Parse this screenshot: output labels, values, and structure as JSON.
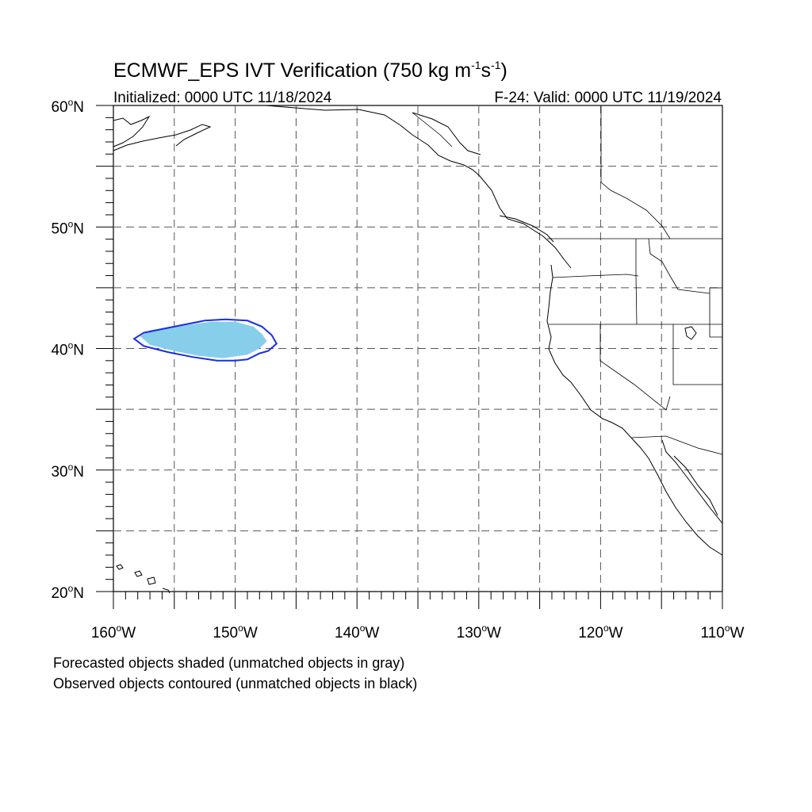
{
  "title": {
    "prefix": "ECMWF_EPS IVT Verification (750 kg m",
    "exp1": "-1",
    "mid": "s",
    "exp2": "-1",
    "suffix": ")"
  },
  "initialized": "Initialized: 0000 UTC 11/18/2024",
  "valid": "F-24: Valid: 0000 UTC 11/19/2024",
  "map": {
    "lon_range": [
      -160,
      -110
    ],
    "lat_range": [
      20,
      60
    ],
    "grid": "dashed every 5 degrees",
    "lat_labels": [
      {
        "lat": 60,
        "text": "60",
        "hemi": "N"
      },
      {
        "lat": 50,
        "text": "50",
        "hemi": "N"
      },
      {
        "lat": 40,
        "text": "40",
        "hemi": "N"
      },
      {
        "lat": 30,
        "text": "30",
        "hemi": "N"
      },
      {
        "lat": 20,
        "text": "20",
        "hemi": "N"
      }
    ],
    "lon_labels": [
      {
        "lon": -160,
        "text": "160",
        "hemi": "W"
      },
      {
        "lon": -150,
        "text": "150",
        "hemi": "W"
      },
      {
        "lon": -140,
        "text": "140",
        "hemi": "W"
      },
      {
        "lon": -130,
        "text": "130",
        "hemi": "W"
      },
      {
        "lon": -120,
        "text": "120",
        "hemi": "W"
      },
      {
        "lon": -110,
        "text": "110",
        "hemi": "W"
      }
    ],
    "forecast_object": {
      "color": "#87ceeb",
      "unmatched_color": "#bdbdbd",
      "outline": [
        [
          -157.8,
          41.0
        ],
        [
          -157.0,
          41.5
        ],
        [
          -155.0,
          41.8
        ],
        [
          -152.0,
          42.2
        ],
        [
          -150.0,
          42.2
        ],
        [
          -148.5,
          41.8
        ],
        [
          -147.8,
          41.2
        ],
        [
          -147.4,
          40.6
        ],
        [
          -148.0,
          40.0
        ],
        [
          -149.0,
          39.5
        ],
        [
          -151.0,
          39.2
        ],
        [
          -153.0,
          39.4
        ],
        [
          -155.0,
          39.8
        ],
        [
          -157.0,
          40.3
        ]
      ]
    },
    "observed_object": {
      "color": "#1a2ee6",
      "outline": [
        [
          -158.3,
          40.8
        ],
        [
          -157.5,
          41.3
        ],
        [
          -155.0,
          41.8
        ],
        [
          -152.5,
          42.3
        ],
        [
          -150.8,
          42.4
        ],
        [
          -149.0,
          42.3
        ],
        [
          -147.8,
          41.8
        ],
        [
          -147.0,
          41.1
        ],
        [
          -146.6,
          40.4
        ],
        [
          -147.3,
          39.8
        ],
        [
          -148.0,
          39.6
        ],
        [
          -149.0,
          39.1
        ],
        [
          -150.0,
          39.0
        ],
        [
          -151.5,
          39.0
        ],
        [
          -153.5,
          39.3
        ],
        [
          -155.5,
          39.7
        ],
        [
          -157.5,
          40.2
        ]
      ]
    }
  },
  "legend": {
    "forecast": "Forecasted objects shaded (unmatched objects in gray)",
    "observed": "Observed objects contoured (unmatched objects in black)"
  }
}
